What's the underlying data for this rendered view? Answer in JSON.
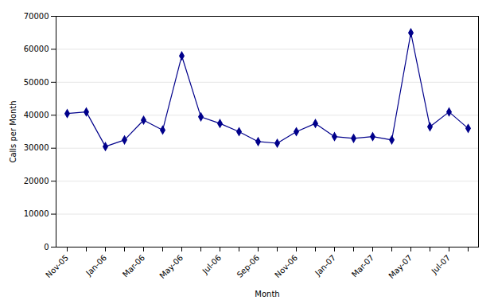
{
  "chart_data": {
    "type": "line",
    "categories": [
      "Nov-05",
      null,
      "Jan-06",
      null,
      "Mar-06",
      null,
      "May-06",
      null,
      "Jul-06",
      null,
      "Sep-06",
      null,
      "Nov-06",
      null,
      "Jan-07",
      null,
      "Mar-07",
      null,
      "May-07",
      null,
      "Jul-07",
      null
    ],
    "values": [
      40500,
      41000,
      30500,
      32500,
      38500,
      35500,
      58000,
      39500,
      37500,
      35000,
      32000,
      31500,
      35000,
      37500,
      33500,
      33000,
      33500,
      32500,
      65000,
      36500,
      41000,
      36000
    ],
    "color": "#00008B",
    "marker": "diamond",
    "xlabel": "Month",
    "ylabel": "Calls per Month",
    "ylim": [
      0,
      70000
    ],
    "yticks": [
      0,
      10000,
      20000,
      30000,
      40000,
      50000,
      60000,
      70000
    ],
    "grid": true
  }
}
